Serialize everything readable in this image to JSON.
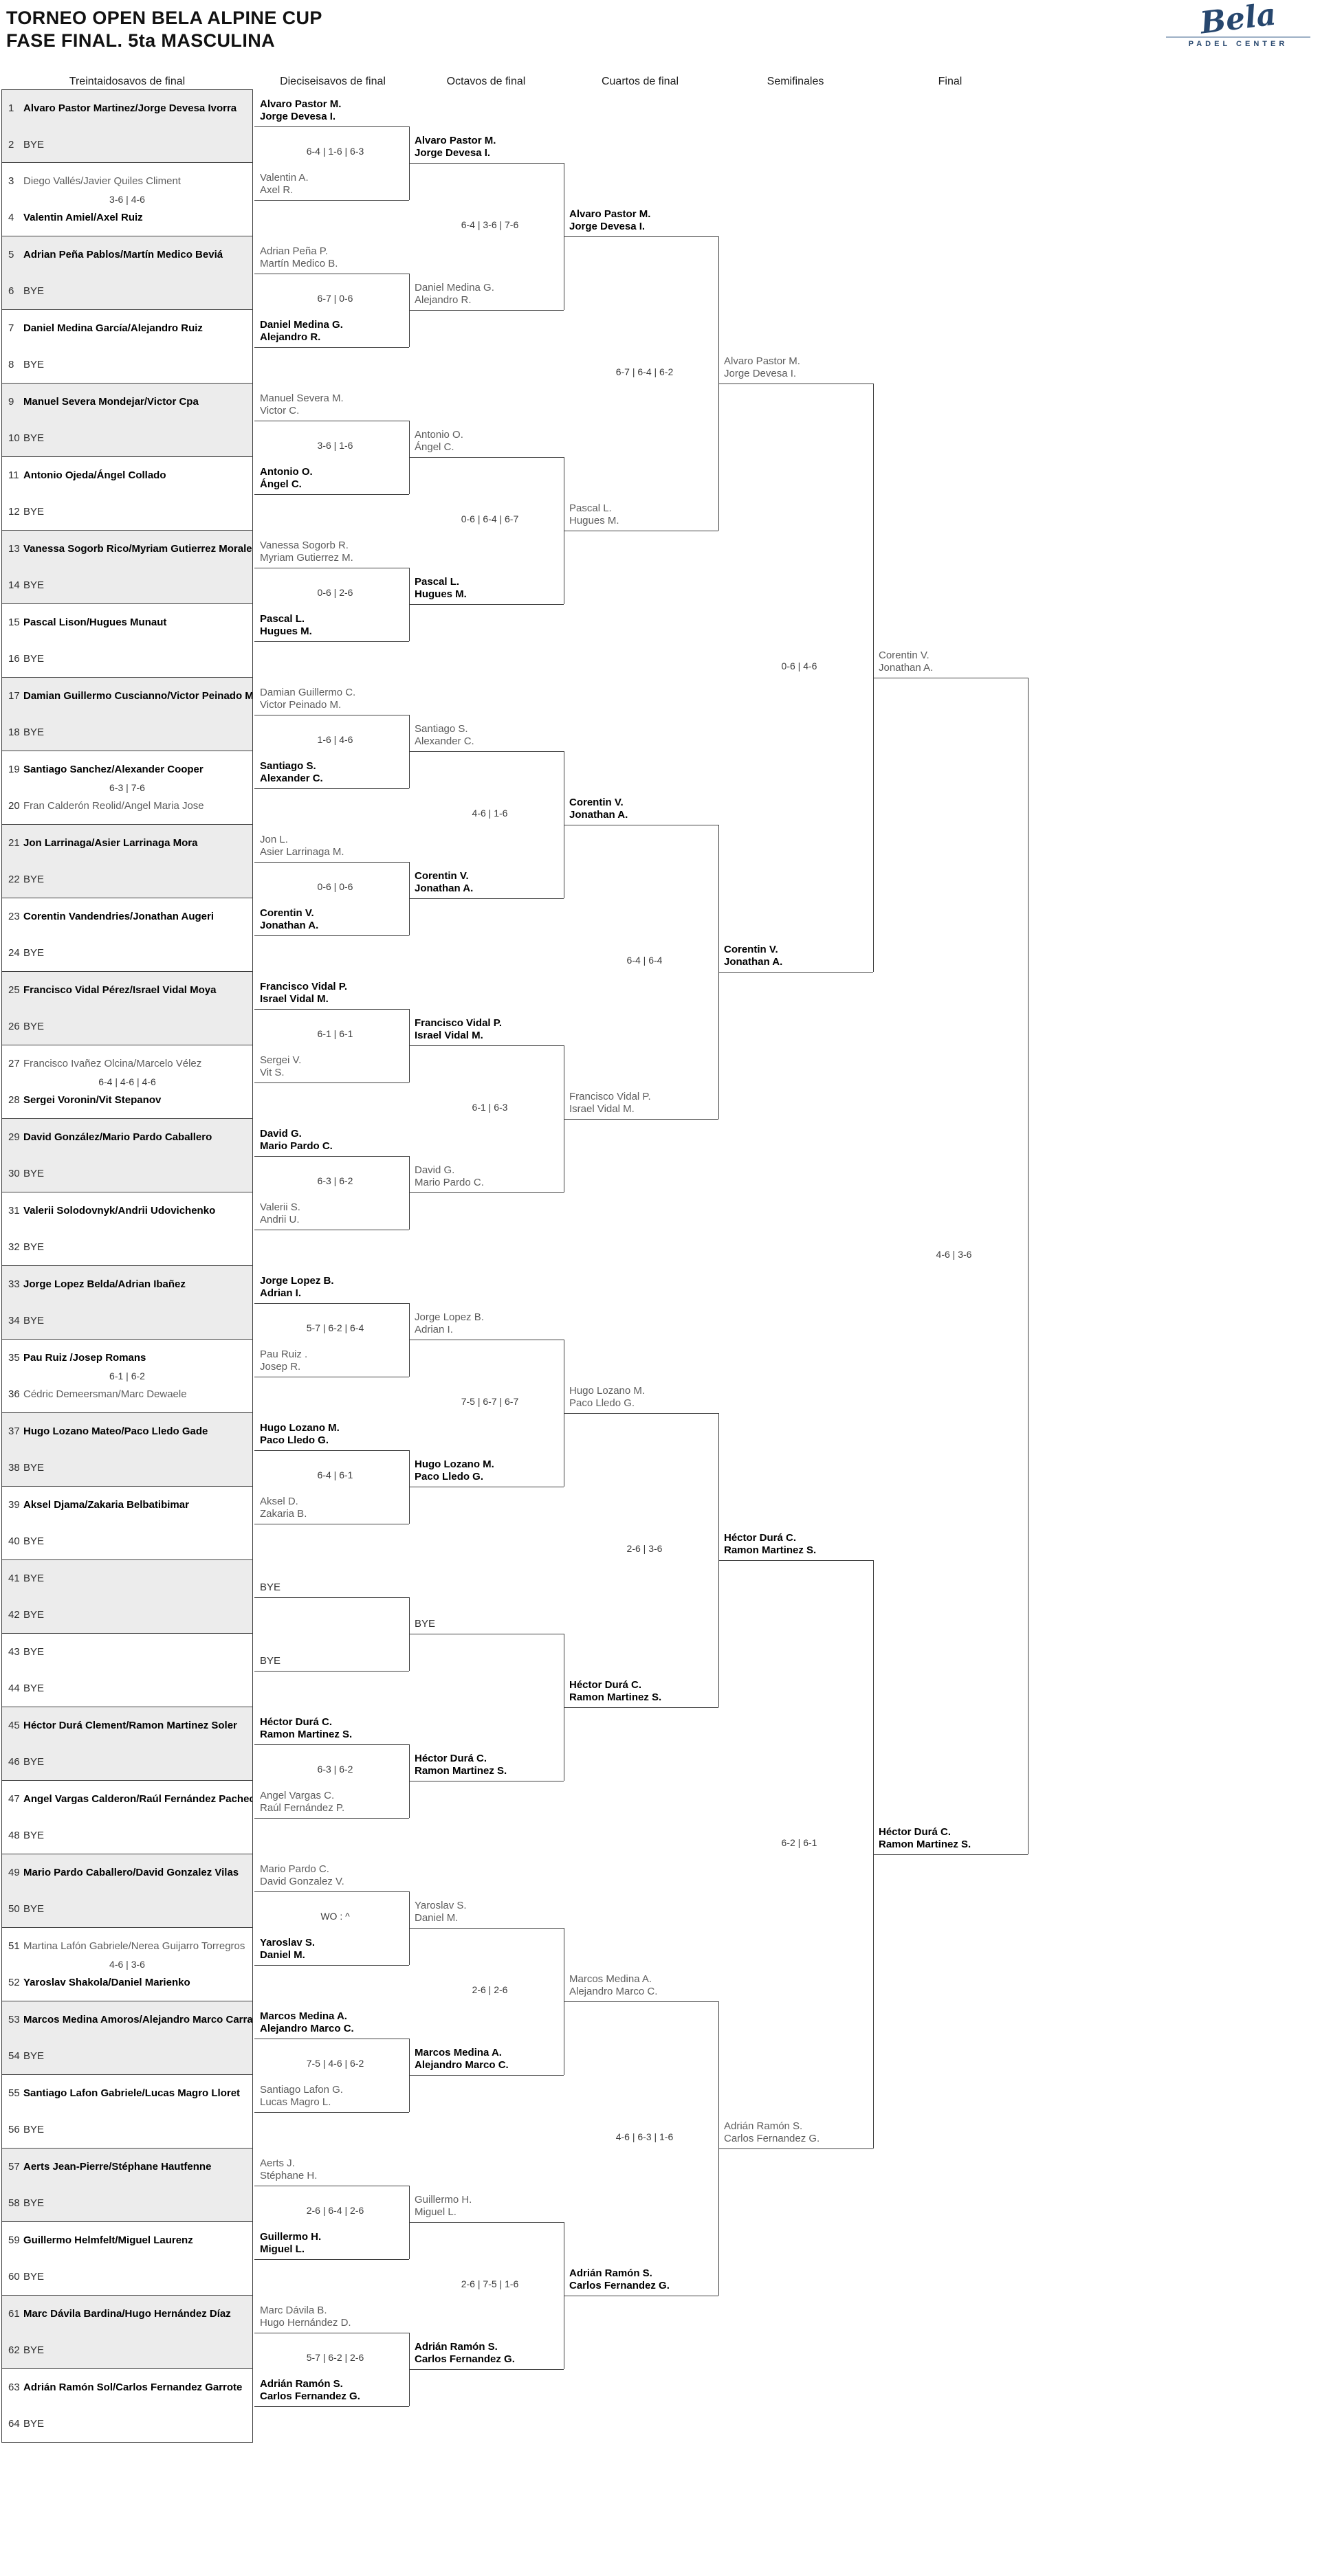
{
  "title": {
    "line1": "TORNEO OPEN BELA ALPINE CUP",
    "line2": "FASE FINAL. 5ta MASCULINA"
  },
  "logo": {
    "script": "Bela",
    "subtitle": "PADEL CENTER",
    "color": "#27476e"
  },
  "round_headers": [
    "Treintaidosavos de final",
    "Dieciseisavos de final",
    "Octavos de final",
    "Cuartos de final",
    "Semifinales",
    "Final"
  ],
  "colors": {
    "winner": "#000000",
    "loser": "#5c5c5c",
    "line": "#3f3f3f",
    "score": "#3a3a3a",
    "shaded_box": "#ececec",
    "logo_navy": "#27476e"
  },
  "bracket": {
    "round1": {
      "slots": [
        {
          "num": 1,
          "name": "Alvaro Pastor Martinez/Jorge Devesa Ivorra",
          "win": true
        },
        {
          "num": 2,
          "name": "BYE",
          "win": false
        },
        {
          "num": 3,
          "name": "Diego Vallés/Javier Quiles Climent",
          "win": false
        },
        {
          "num": 4,
          "name": "Valentin Amiel/Axel Ruiz",
          "win": true
        },
        {
          "num": 5,
          "name": "Adrian Peña Pablos/Martín Medico Beviá",
          "win": true
        },
        {
          "num": 6,
          "name": "BYE",
          "win": false
        },
        {
          "num": 7,
          "name": "Daniel Medina García/Alejandro Ruiz",
          "win": true
        },
        {
          "num": 8,
          "name": "BYE",
          "win": false
        },
        {
          "num": 9,
          "name": "Manuel Severa Mondejar/Victor Cpa",
          "win": true
        },
        {
          "num": 10,
          "name": "BYE",
          "win": false
        },
        {
          "num": 11,
          "name": "Antonio Ojeda/Ángel Collado",
          "win": true
        },
        {
          "num": 12,
          "name": "BYE",
          "win": false
        },
        {
          "num": 13,
          "name": "Vanessa Sogorb Rico/Myriam Gutierrez Morales",
          "win": true
        },
        {
          "num": 14,
          "name": "BYE",
          "win": false
        },
        {
          "num": 15,
          "name": "Pascal Lison/Hugues Munaut",
          "win": true
        },
        {
          "num": 16,
          "name": "BYE",
          "win": false
        },
        {
          "num": 17,
          "name": "Damian Guillermo Cuscianno/Victor Peinado Ma",
          "win": true
        },
        {
          "num": 18,
          "name": "BYE",
          "win": false
        },
        {
          "num": 19,
          "name": "Santiago Sanchez/Alexander Cooper",
          "win": true
        },
        {
          "num": 20,
          "name": "Fran Calderón Reolid/Angel Maria Jose",
          "win": false
        },
        {
          "num": 21,
          "name": "Jon Larrinaga/Asier Larrinaga Mora",
          "win": true
        },
        {
          "num": 22,
          "name": "BYE",
          "win": false
        },
        {
          "num": 23,
          "name": "Corentin Vandendries/Jonathan Augeri",
          "win": true
        },
        {
          "num": 24,
          "name": "BYE",
          "win": false
        },
        {
          "num": 25,
          "name": "Francisco Vidal Pérez/Israel Vidal Moya",
          "win": true
        },
        {
          "num": 26,
          "name": "BYE",
          "win": false
        },
        {
          "num": 27,
          "name": "Francisco Ivañez Olcina/Marcelo Vélez",
          "win": false
        },
        {
          "num": 28,
          "name": "Sergei Voronin/Vit Stepanov",
          "win": true
        },
        {
          "num": 29,
          "name": "David González/Mario Pardo Caballero",
          "win": true
        },
        {
          "num": 30,
          "name": "BYE",
          "win": false
        },
        {
          "num": 31,
          "name": "Valerii Solodovnyk/Andrii Udovichenko",
          "win": true
        },
        {
          "num": 32,
          "name": "BYE",
          "win": false
        },
        {
          "num": 33,
          "name": "Jorge Lopez Belda/Adrian Ibañez",
          "win": true
        },
        {
          "num": 34,
          "name": "BYE",
          "win": false
        },
        {
          "num": 35,
          "name": "Pau Ruiz /Josep Romans",
          "win": true
        },
        {
          "num": 36,
          "name": "Cédric Demeersman/Marc Dewaele",
          "win": false
        },
        {
          "num": 37,
          "name": "Hugo Lozano Mateo/Paco Lledo Gade",
          "win": true
        },
        {
          "num": 38,
          "name": "BYE",
          "win": false
        },
        {
          "num": 39,
          "name": "Aksel Djama/Zakaria Belbatibimar",
          "win": true
        },
        {
          "num": 40,
          "name": "BYE",
          "win": false
        },
        {
          "num": 41,
          "name": "BYE",
          "win": false
        },
        {
          "num": 42,
          "name": "BYE",
          "win": false
        },
        {
          "num": 43,
          "name": "BYE",
          "win": false
        },
        {
          "num": 44,
          "name": "BYE",
          "win": false
        },
        {
          "num": 45,
          "name": "Héctor Durá Clement/Ramon Martinez Soler",
          "win": true
        },
        {
          "num": 46,
          "name": "BYE",
          "win": false
        },
        {
          "num": 47,
          "name": "Angel Vargas Calderon/Raúl Fernández Pacheco",
          "win": true
        },
        {
          "num": 48,
          "name": "BYE",
          "win": false
        },
        {
          "num": 49,
          "name": "Mario Pardo Caballero/David Gonzalez Vilas",
          "win": true
        },
        {
          "num": 50,
          "name": "BYE",
          "win": false
        },
        {
          "num": 51,
          "name": "Martina Lafón Gabriele/Nerea Guijarro Torregros",
          "win": false
        },
        {
          "num": 52,
          "name": "Yaroslav Shakola/Daniel Marienko",
          "win": true
        },
        {
          "num": 53,
          "name": "Marcos Medina Amoros/Alejandro Marco Carrata",
          "win": true
        },
        {
          "num": 54,
          "name": "BYE",
          "win": false
        },
        {
          "num": 55,
          "name": "Santiago Lafon Gabriele/Lucas Magro Lloret",
          "win": true
        },
        {
          "num": 56,
          "name": "BYE",
          "win": false
        },
        {
          "num": 57,
          "name": "Aerts Jean-Pierre/Stéphane Hautfenne",
          "win": true
        },
        {
          "num": 58,
          "name": "BYE",
          "win": false
        },
        {
          "num": 59,
          "name": "Guillermo Helmfelt/Miguel Laurenz",
          "win": true
        },
        {
          "num": 60,
          "name": "BYE",
          "win": false
        },
        {
          "num": 61,
          "name": "Marc Dávila Bardina/Hugo Hernández Díaz",
          "win": true
        },
        {
          "num": 62,
          "name": "BYE",
          "win": false
        },
        {
          "num": 63,
          "name": "Adrián Ramón Sol/Carlos Fernandez Garrote",
          "win": true
        },
        {
          "num": 64,
          "name": "BYE",
          "win": false
        }
      ],
      "scores": [
        "",
        "3-6 | 4-6",
        "",
        "",
        "",
        "",
        "",
        "",
        "",
        "6-3 | 7-6",
        "",
        "",
        "",
        "6-4 | 4-6 | 4-6",
        "",
        "",
        "",
        "6-1 | 6-2",
        "",
        "",
        "",
        "",
        "",
        "",
        "",
        "4-6 | 3-6",
        "",
        "",
        "",
        "",
        "",
        ""
      ]
    },
    "round2": {
      "entries": [
        {
          "lines": [
            "Alvaro Pastor M.",
            "Jorge Devesa I."
          ],
          "win": true
        },
        {
          "lines": [
            "Valentin A.",
            "Axel R."
          ],
          "win": false
        },
        {
          "lines": [
            "Adrian Peña P.",
            "Martín Medico B."
          ],
          "win": false
        },
        {
          "lines": [
            "Daniel Medina G.",
            "Alejandro R."
          ],
          "win": true
        },
        {
          "lines": [
            "Manuel Severa M.",
            "Victor C."
          ],
          "win": false
        },
        {
          "lines": [
            "Antonio O.",
            "Ángel C."
          ],
          "win": true
        },
        {
          "lines": [
            "Vanessa Sogorb R.",
            "Myriam Gutierrez M."
          ],
          "win": false
        },
        {
          "lines": [
            "Pascal L.",
            "Hugues M."
          ],
          "win": true
        },
        {
          "lines": [
            "Damian Guillermo C.",
            "Victor Peinado M."
          ],
          "win": false
        },
        {
          "lines": [
            "Santiago S.",
            "Alexander C."
          ],
          "win": true
        },
        {
          "lines": [
            "Jon L.",
            "Asier Larrinaga M."
          ],
          "win": false
        },
        {
          "lines": [
            "Corentin V.",
            "Jonathan A."
          ],
          "win": true
        },
        {
          "lines": [
            "Francisco Vidal P.",
            "Israel Vidal M."
          ],
          "win": true
        },
        {
          "lines": [
            "Sergei V.",
            "Vit S."
          ],
          "win": false
        },
        {
          "lines": [
            "David G.",
            "Mario Pardo C."
          ],
          "win": true
        },
        {
          "lines": [
            "Valerii S.",
            "Andrii U."
          ],
          "win": false
        },
        {
          "lines": [
            "Jorge Lopez B.",
            "Adrian I."
          ],
          "win": true
        },
        {
          "lines": [
            "Pau Ruiz .",
            "Josep R."
          ],
          "win": false
        },
        {
          "lines": [
            "Hugo Lozano M.",
            "Paco Lledo G."
          ],
          "win": true
        },
        {
          "lines": [
            "Aksel D.",
            "Zakaria B."
          ],
          "win": false
        },
        {
          "lines": [
            "BYE"
          ],
          "win": false
        },
        {
          "lines": [
            "BYE"
          ],
          "win": false
        },
        {
          "lines": [
            "Héctor Durá C.",
            "Ramon Martinez S."
          ],
          "win": true
        },
        {
          "lines": [
            "Angel Vargas C.",
            "Raúl Fernández P."
          ],
          "win": false
        },
        {
          "lines": [
            "Mario Pardo C.",
            "David Gonzalez V."
          ],
          "win": false
        },
        {
          "lines": [
            "Yaroslav S.",
            "Daniel M."
          ],
          "win": true
        },
        {
          "lines": [
            "Marcos Medina A.",
            "Alejandro Marco C."
          ],
          "win": true
        },
        {
          "lines": [
            "Santiago Lafon G.",
            "Lucas Magro L."
          ],
          "win": false
        },
        {
          "lines": [
            "Aerts J.",
            "Stéphane H."
          ],
          "win": false
        },
        {
          "lines": [
            "Guillermo H.",
            "Miguel L."
          ],
          "win": true
        },
        {
          "lines": [
            "Marc Dávila B.",
            "Hugo Hernández D."
          ],
          "win": false
        },
        {
          "lines": [
            "Adrián Ramón S.",
            "Carlos Fernandez G."
          ],
          "win": true
        }
      ],
      "scores": [
        "6-4 | 1-6 | 6-3",
        "6-7 | 0-6",
        "3-6 | 1-6",
        "0-6 | 2-6",
        "1-6 | 4-6",
        "0-6 | 0-6",
        "6-1 | 6-1",
        "6-3 | 6-2",
        "5-7 | 6-2 | 6-4",
        "6-4 | 6-1",
        "",
        "6-3 | 6-2",
        "WO : ^",
        "7-5 | 4-6 | 6-2",
        "2-6 | 6-4 | 2-6",
        "5-7 | 6-2 | 2-6"
      ]
    },
    "round3": {
      "entries": [
        {
          "lines": [
            "Alvaro Pastor M.",
            "Jorge Devesa I."
          ],
          "win": true
        },
        {
          "lines": [
            "Daniel Medina G.",
            "Alejandro R."
          ],
          "win": false
        },
        {
          "lines": [
            "Antonio O.",
            "Ángel C."
          ],
          "win": false
        },
        {
          "lines": [
            "Pascal L.",
            "Hugues M."
          ],
          "win": true
        },
        {
          "lines": [
            "Santiago S.",
            "Alexander C."
          ],
          "win": false
        },
        {
          "lines": [
            "Corentin V.",
            "Jonathan A."
          ],
          "win": true
        },
        {
          "lines": [
            "Francisco Vidal P.",
            "Israel Vidal M."
          ],
          "win": true
        },
        {
          "lines": [
            "David G.",
            "Mario Pardo C."
          ],
          "win": false
        },
        {
          "lines": [
            "Jorge Lopez B.",
            "Adrian I."
          ],
          "win": false
        },
        {
          "lines": [
            "Hugo Lozano M.",
            "Paco Lledo G."
          ],
          "win": true
        },
        {
          "lines": [
            "BYE"
          ],
          "win": false
        },
        {
          "lines": [
            "Héctor Durá C.",
            "Ramon Martinez S."
          ],
          "win": true
        },
        {
          "lines": [
            "Yaroslav S.",
            "Daniel M."
          ],
          "win": false
        },
        {
          "lines": [
            "Marcos Medina A.",
            "Alejandro Marco C."
          ],
          "win": true
        },
        {
          "lines": [
            "Guillermo H.",
            "Miguel L."
          ],
          "win": false
        },
        {
          "lines": [
            "Adrián Ramón S.",
            "Carlos Fernandez G."
          ],
          "win": true
        }
      ],
      "scores": [
        "6-4 | 3-6 | 7-6",
        "0-6 | 6-4 | 6-7",
        "4-6 | 1-6",
        "6-1 | 6-3",
        "7-5 | 6-7 | 6-7",
        "",
        "2-6 | 2-6",
        "2-6 | 7-5 | 1-6"
      ]
    },
    "round4": {
      "entries": [
        {
          "lines": [
            "Alvaro Pastor M.",
            "Jorge Devesa I."
          ],
          "win": true
        },
        {
          "lines": [
            "Pascal L.",
            "Hugues M."
          ],
          "win": false
        },
        {
          "lines": [
            "Corentin V.",
            "Jonathan A."
          ],
          "win": true
        },
        {
          "lines": [
            "Francisco Vidal P.",
            "Israel Vidal M."
          ],
          "win": false
        },
        {
          "lines": [
            "Hugo Lozano M.",
            "Paco Lledo G."
          ],
          "win": false
        },
        {
          "lines": [
            "Héctor Durá C.",
            "Ramon Martinez S."
          ],
          "win": true
        },
        {
          "lines": [
            "Marcos Medina A.",
            "Alejandro Marco C."
          ],
          "win": false
        },
        {
          "lines": [
            "Adrián Ramón S.",
            "Carlos Fernandez G."
          ],
          "win": true
        }
      ],
      "scores": [
        "6-7 | 6-4 | 6-2",
        "6-4 | 6-4",
        "2-6 | 3-6",
        "4-6 | 6-3 | 1-6"
      ]
    },
    "round5": {
      "entries": [
        {
          "lines": [
            "Alvaro Pastor M.",
            "Jorge Devesa I."
          ],
          "win": false
        },
        {
          "lines": [
            "Corentin V.",
            "Jonathan A."
          ],
          "win": true
        },
        {
          "lines": [
            "Héctor Durá C.",
            "Ramon Martinez S."
          ],
          "win": true
        },
        {
          "lines": [
            "Adrián Ramón S.",
            "Carlos Fernandez G."
          ],
          "win": false
        }
      ],
      "scores": [
        "0-6 | 4-6",
        "6-2 | 6-1"
      ]
    },
    "round6": {
      "entries": [
        {
          "lines": [
            "Corentin V.",
            "Jonathan A."
          ],
          "win": false
        },
        {
          "lines": [
            "Héctor Durá C.",
            "Ramon Martinez S."
          ],
          "win": true
        }
      ],
      "scores": [
        "4-6 | 3-6"
      ]
    }
  }
}
